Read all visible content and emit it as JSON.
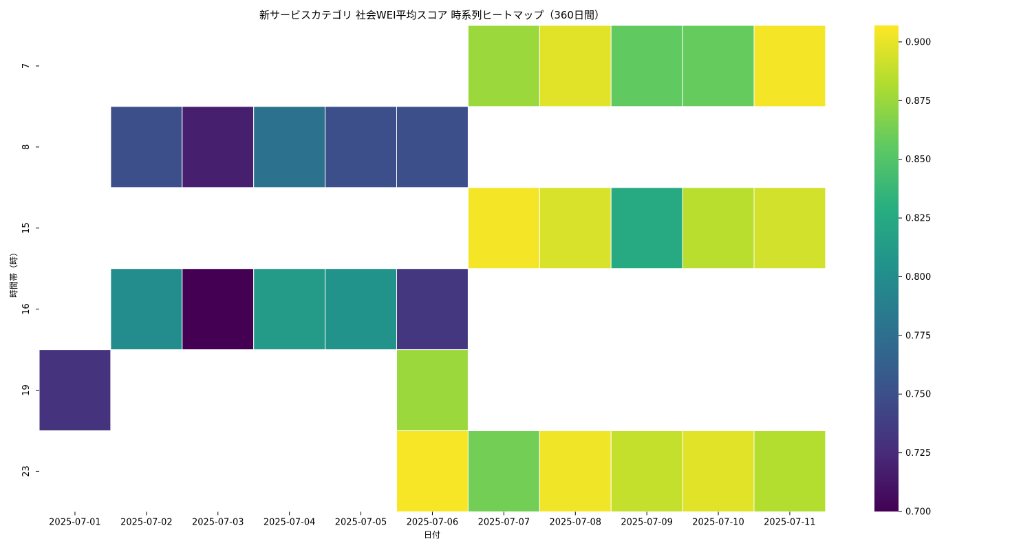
{
  "chart_data": {
    "type": "heatmap",
    "title": "新サービスカテゴリ 社会WEI平均スコア 時系列ヒートマップ（360日間）",
    "xlabel": "日付",
    "ylabel": "時間帯（時）",
    "x": [
      "2025-07-01",
      "2025-07-02",
      "2025-07-03",
      "2025-07-04",
      "2025-07-05",
      "2025-07-06",
      "2025-07-07",
      "2025-07-08",
      "2025-07-09",
      "2025-07-10",
      "2025-07-11"
    ],
    "y": [
      "7",
      "8",
      "15",
      "16",
      "19",
      "23"
    ],
    "values": [
      [
        null,
        null,
        null,
        null,
        null,
        null,
        0.875,
        0.898,
        0.856,
        0.858,
        0.904
      ],
      [
        null,
        0.75,
        0.718,
        0.778,
        0.75,
        0.75,
        null,
        null,
        null,
        null,
        null
      ],
      [
        null,
        null,
        null,
        null,
        null,
        null,
        0.904,
        0.895,
        0.825,
        0.885,
        0.893
      ],
      [
        null,
        0.8,
        0.7,
        0.812,
        0.805,
        0.733,
        null,
        null,
        null,
        null,
        null
      ],
      [
        0.73,
        null,
        null,
        null,
        null,
        0.875,
        null,
        null,
        null,
        null,
        null
      ],
      [
        null,
        null,
        null,
        null,
        null,
        0.905,
        0.862,
        0.903,
        0.889,
        0.898,
        0.883
      ]
    ],
    "colorscale": "viridis",
    "colorbar": {
      "min": 0.7,
      "max": 0.907,
      "ticks": [
        "0.700",
        "0.725",
        "0.750",
        "0.775",
        "0.800",
        "0.825",
        "0.850",
        "0.875",
        "0.900"
      ]
    },
    "grid": false,
    "legend": "right"
  }
}
